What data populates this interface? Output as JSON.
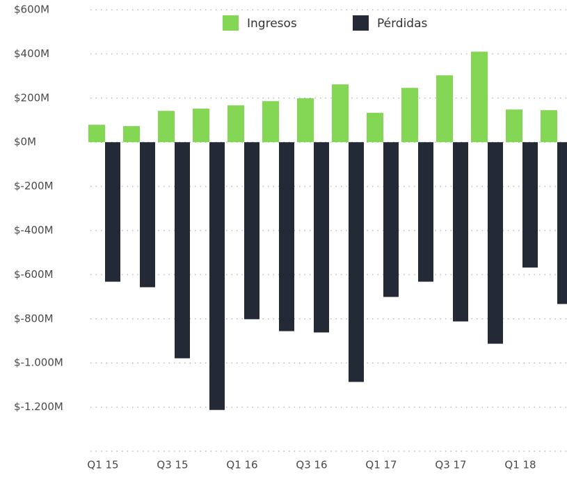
{
  "chart_data": {
    "type": "bar",
    "categories": [
      "Q1 15",
      null,
      "Q3 15",
      null,
      "Q1 16",
      null,
      "Q3 16",
      null,
      "Q1 17",
      null,
      "Q3 17",
      null,
      "Q1 18",
      null
    ],
    "series": [
      {
        "name": "Ingresos",
        "color": "#84d655",
        "values": [
          79,
          73,
          142,
          152,
          167,
          186,
          199,
          262,
          133,
          246,
          303,
          410,
          148,
          145
        ]
      },
      {
        "name": "Pérdidas",
        "color": "#242a35",
        "values": [
          -632,
          -657,
          -979,
          -1213,
          -802,
          -856,
          -862,
          -1086,
          -701,
          -632,
          -812,
          -913,
          -568,
          -733
        ]
      }
    ],
    "ylim": [
      -1400,
      600
    ],
    "yticks": [
      {
        "value": 600,
        "label": "$600M"
      },
      {
        "value": 400,
        "label": "$400M"
      },
      {
        "value": 200,
        "label": "$200M"
      },
      {
        "value": 0,
        "label": "$0M"
      },
      {
        "value": -200,
        "label": "$-200M"
      },
      {
        "value": -400,
        "label": "$-400M"
      },
      {
        "value": -600,
        "label": "$-600M"
      },
      {
        "value": -800,
        "label": "$-800M"
      },
      {
        "value": -1000,
        "label": "$-1.000M"
      },
      {
        "value": -1200,
        "label": "$-1.200M"
      }
    ],
    "grid": true
  }
}
